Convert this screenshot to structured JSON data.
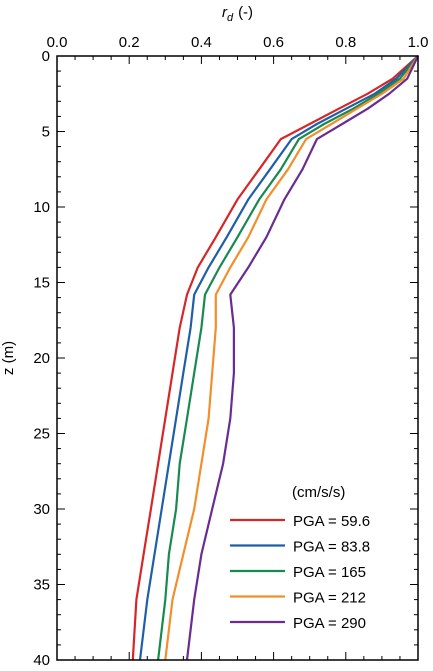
{
  "chart_data": {
    "type": "line",
    "xlabel": {
      "main": "r",
      "sub": "d",
      "unit": "(-)"
    },
    "ylabel": "z (m)",
    "x_axis_position": "top",
    "y_axis_inverted": true,
    "xlim": [
      0.0,
      1.0
    ],
    "ylim": [
      0,
      40
    ],
    "x_ticks": [
      0.0,
      0.2,
      0.4,
      0.6,
      0.8,
      1.0
    ],
    "x_tick_labels": [
      "0.0",
      "0.2",
      "0.4",
      "0.6",
      "0.8",
      "1.0"
    ],
    "y_ticks": [
      0,
      5,
      10,
      15,
      20,
      25,
      30,
      35,
      40
    ],
    "y_tick_labels": [
      "0",
      "5",
      "10",
      "15",
      "20",
      "25",
      "30",
      "35",
      "40"
    ],
    "grid": false,
    "legend_title": "(cm/s/s)",
    "legend_position": "bottom-right",
    "series": [
      {
        "name": "PGA = 59.6",
        "color": "#d62728",
        "x": [
          1.0,
          0.93,
          0.86,
          0.78,
          0.7,
          0.62,
          0.56,
          0.5,
          0.44,
          0.39,
          0.36,
          0.34,
          0.32,
          0.3,
          0.28,
          0.26,
          0.24,
          0.22,
          0.21
        ],
        "y": [
          0,
          1.5,
          2.5,
          3.5,
          4.5,
          5.5,
          7.5,
          9.5,
          12,
          14,
          15.8,
          18,
          21,
          24,
          27,
          30,
          33,
          36,
          40
        ]
      },
      {
        "name": "PGA = 83.8",
        "color": "#1f5fa8",
        "x": [
          1.0,
          0.94,
          0.88,
          0.8,
          0.72,
          0.65,
          0.59,
          0.53,
          0.47,
          0.42,
          0.38,
          0.37,
          0.35,
          0.33,
          0.31,
          0.29,
          0.27,
          0.25,
          0.23
        ],
        "y": [
          0,
          1.5,
          2.5,
          3.5,
          4.5,
          5.5,
          7.5,
          9.5,
          12,
          14,
          15.8,
          18,
          21,
          24,
          27,
          30,
          33,
          36,
          40
        ]
      },
      {
        "name": "PGA = 165",
        "color": "#178a4f",
        "x": [
          1.0,
          0.95,
          0.89,
          0.82,
          0.74,
          0.67,
          0.62,
          0.56,
          0.5,
          0.45,
          0.41,
          0.4,
          0.38,
          0.36,
          0.34,
          0.33,
          0.31,
          0.3,
          0.28
        ],
        "y": [
          0,
          1.5,
          2.5,
          3.5,
          4.5,
          5.5,
          7.5,
          9.5,
          12,
          14,
          15.8,
          18,
          21,
          24,
          27,
          30,
          33,
          36,
          40
        ]
      },
      {
        "name": "PGA = 212",
        "color": "#f28e2b",
        "x": [
          1.0,
          0.96,
          0.9,
          0.83,
          0.76,
          0.69,
          0.64,
          0.58,
          0.53,
          0.48,
          0.44,
          0.44,
          0.43,
          0.42,
          0.4,
          0.38,
          0.35,
          0.32,
          0.3
        ],
        "y": [
          0,
          1.5,
          2.5,
          3.5,
          4.5,
          5.5,
          7.5,
          9.5,
          12,
          14,
          15.8,
          18,
          21,
          24,
          27,
          30,
          33,
          36,
          40
        ]
      },
      {
        "name": "PGA = 290",
        "color": "#6a2c91",
        "x": [
          1.0,
          0.97,
          0.92,
          0.86,
          0.79,
          0.72,
          0.68,
          0.63,
          0.58,
          0.53,
          0.48,
          0.49,
          0.49,
          0.48,
          0.46,
          0.43,
          0.4,
          0.38,
          0.36
        ],
        "y": [
          0,
          1.5,
          2.5,
          3.5,
          4.5,
          5.5,
          7.5,
          9.5,
          12,
          14,
          15.8,
          18,
          21,
          24,
          27,
          30,
          33,
          36,
          40
        ]
      }
    ]
  }
}
